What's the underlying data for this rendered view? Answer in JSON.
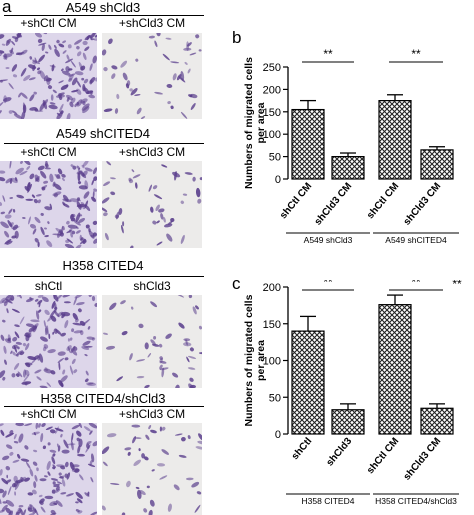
{
  "panel_letters": {
    "a": "a",
    "b": "b",
    "c": "c"
  },
  "left": {
    "sections": [
      {
        "title": "A549 shCld3",
        "labels": [
          "+shCtl CM",
          "+shCld3 CM"
        ],
        "density": [
          "high",
          "low"
        ]
      },
      {
        "title": "A549 shCITED4",
        "labels": [
          "+shCtl CM",
          "+shCld3 CM"
        ],
        "density": [
          "high",
          "low"
        ]
      },
      {
        "title": "H358 CITED4",
        "labels": [
          "shCtl",
          "shCld3"
        ],
        "density": [
          "high",
          "low"
        ]
      },
      {
        "title": "H358 CITED4/shCld3",
        "labels": [
          "+shCtl CM",
          "+shCld3 CM"
        ],
        "density": [
          "high",
          "low"
        ]
      }
    ],
    "colors": {
      "stain": "#5a3e8c",
      "background_high": "#ddd6ea",
      "background_low": "#ecebea"
    }
  },
  "chart_data": [
    {
      "type": "bar",
      "ylabel": "Numbers of migrated cells per area",
      "ylim": [
        0,
        250
      ],
      "yticks": [
        "0",
        "50",
        "100",
        "150",
        "200",
        "250"
      ],
      "categories": [
        "shCtl CM",
        "shCld3 CM",
        "shCtl CM",
        "shCld3 CM"
      ],
      "values": [
        155,
        50,
        175,
        65
      ],
      "errors": [
        20,
        8,
        13,
        7
      ],
      "groups": [
        {
          "label": "A549 shCld3",
          "members": [
            0,
            1
          ]
        },
        {
          "label": "A549 shCITED4",
          "members": [
            2,
            3
          ]
        }
      ],
      "significance": [
        {
          "pair": [
            0,
            1
          ],
          "label": "**"
        },
        {
          "pair": [
            2,
            3
          ],
          "label": "**"
        }
      ]
    },
    {
      "type": "bar",
      "ylabel": "Numbers of migrated cells per area",
      "ylim": [
        0,
        200
      ],
      "yticks": [
        "0",
        "50",
        "100",
        "150",
        "200"
      ],
      "categories": [
        "shCtl",
        "shCld3",
        "shCtl CM",
        "shCld3 CM"
      ],
      "values": [
        140,
        33,
        176,
        35
      ],
      "errors": [
        20,
        8,
        13,
        6
      ],
      "groups": [
        {
          "label": "H358 CITED4",
          "members": [
            0,
            1
          ]
        },
        {
          "label": "H358 CITED4/shCld3",
          "members": [
            2,
            3
          ]
        }
      ],
      "significance": [
        {
          "pair": [
            0,
            1
          ],
          "label": "**"
        },
        {
          "pair": [
            2,
            3
          ],
          "label": "**"
        }
      ],
      "corner_annotation": "**"
    }
  ]
}
